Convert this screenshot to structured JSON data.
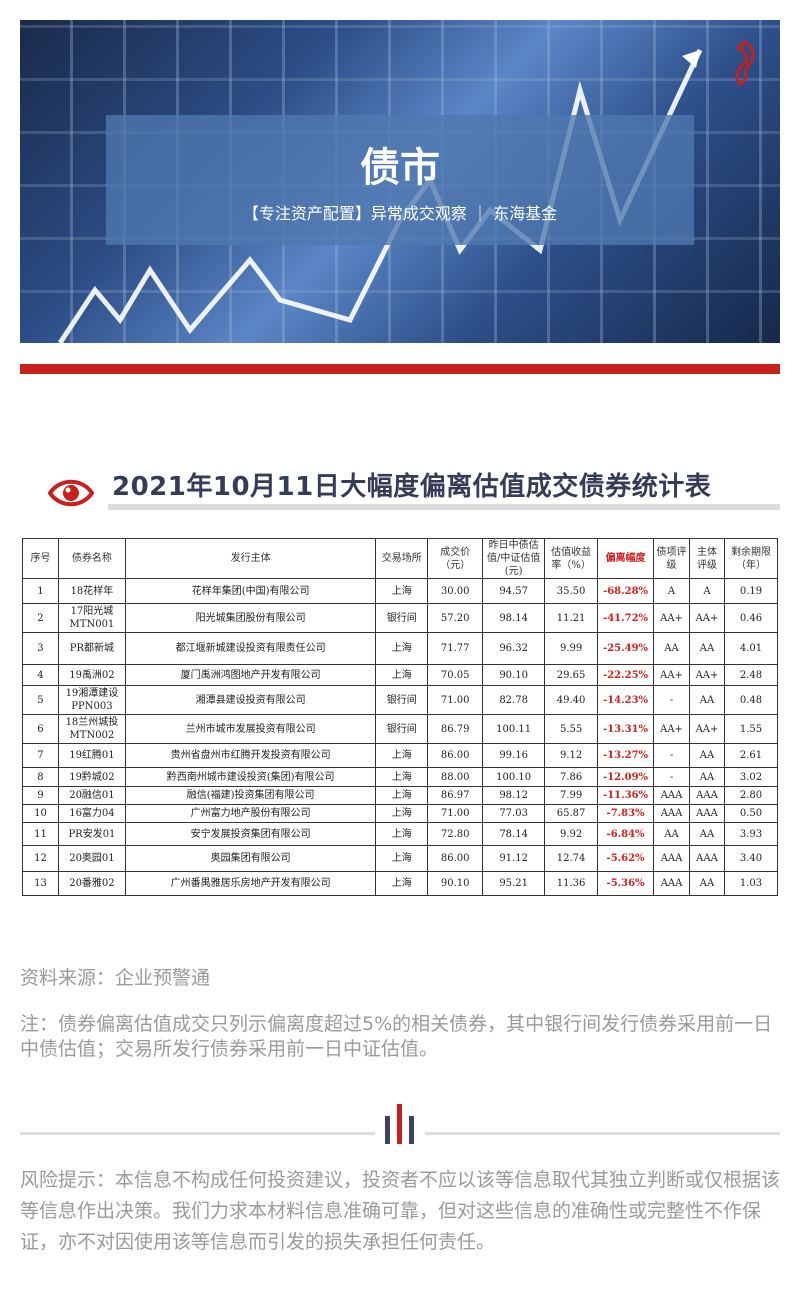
{
  "banner": {
    "title": "债市",
    "subtitle": "【专注资产配置】异常成交观察 ｜ 东海基金"
  },
  "heading": "2021年10月11日大幅度偏离估值成交债券统计表",
  "colors": {
    "accent": "#c8201c",
    "heading": "#363c58",
    "deviation": "#d4201c"
  },
  "table": {
    "headers": [
      "序号",
      "债券名称",
      "发行主体",
      "交易场所",
      "成交价（元）",
      "昨日中债估值/中证估值(元)",
      "估值收益率（%）",
      "偏离幅度",
      "债项评级",
      "主体评级",
      "剩余期限（年）"
    ],
    "rows": [
      [
        "1",
        "18花样年",
        "花样年集团(中国)有限公司",
        "上海",
        "30.00",
        "94.57",
        "35.50",
        "-68.28%",
        "A",
        "A",
        "0.19"
      ],
      [
        "2",
        "17阳光城MTN001",
        "阳光城集团股份有限公司",
        "银行间",
        "57.20",
        "98.14",
        "11.21",
        "-41.72%",
        "AA+",
        "AA+",
        "0.46"
      ],
      [
        "3",
        "PR都新城",
        "都江堰新城建设投资有限责任公司",
        "上海",
        "71.77",
        "96.32",
        "9.99",
        "-25.49%",
        "AA",
        "AA",
        "4.01"
      ],
      [
        "4",
        "19禹洲02",
        "厦门禹洲鸿图地产开发有限公司",
        "上海",
        "70.05",
        "90.10",
        "29.65",
        "-22.25%",
        "AA+",
        "AA+",
        "2.48"
      ],
      [
        "5",
        "19湘潭建设PPN003",
        "湘潭县建设投资有限公司",
        "银行间",
        "71.00",
        "82.78",
        "49.40",
        "-14.23%",
        "-",
        "AA",
        "0.48"
      ],
      [
        "6",
        "18兰州城投MTN002",
        "兰州市城市发展投资有限公司",
        "银行间",
        "86.79",
        "100.11",
        "5.55",
        "-13.31%",
        "AA+",
        "AA+",
        "1.55"
      ],
      [
        "7",
        "19红腾01",
        "贵州省盘州市红腾开发投资有限公司",
        "上海",
        "86.00",
        "99.16",
        "9.12",
        "-13.27%",
        "-",
        "AA",
        "2.61"
      ],
      [
        "8",
        "19黔城02",
        "黔西南州城市建设投资(集团)有限公司",
        "上海",
        "88.00",
        "100.10",
        "7.86",
        "-12.09%",
        "-",
        "AA",
        "3.02"
      ],
      [
        "9",
        "20融信01",
        "融信(福建)投资集团有限公司",
        "上海",
        "86.97",
        "98.12",
        "7.99",
        "-11.36%",
        "AAA",
        "AAA",
        "2.80"
      ],
      [
        "10",
        "16富力04",
        "广州富力地产股份有限公司",
        "上海",
        "71.00",
        "77.03",
        "65.87",
        "-7.83%",
        "AAA",
        "AAA",
        "0.50"
      ],
      [
        "11",
        "PR安发01",
        "安宁发展投资集团有限公司",
        "上海",
        "72.80",
        "78.14",
        "9.92",
        "-6.84%",
        "AA",
        "AA",
        "3.93"
      ],
      [
        "12",
        "20奥园01",
        "奥园集团有限公司",
        "上海",
        "86.00",
        "91.12",
        "12.74",
        "-5.62%",
        "AAA",
        "AAA",
        "3.40"
      ],
      [
        "13",
        "20番雅02",
        "广州番禺雅居乐房地产开发有限公司",
        "上海",
        "90.10",
        "95.21",
        "11.36",
        "-5.36%",
        "AAA",
        "AA",
        "1.03"
      ]
    ]
  },
  "source": "资料来源：企业预警通",
  "note": "注：债券偏离估值成交只列示偏离度超过5%的相关债券，其中银行间发行债券采用前一日中债估值；交易所发行债券采用前一日中证估值。",
  "risk": "风险提示：本信息不构成任何投资建议，投资者不应以该等信息取代其独立判断或仅根据该等信息作出决策。我们力求本材料信息准确可靠，但对这些信息的准确性或完整性不作保证，亦不对因使用该等信息而引发的损失承担任何责任。"
}
